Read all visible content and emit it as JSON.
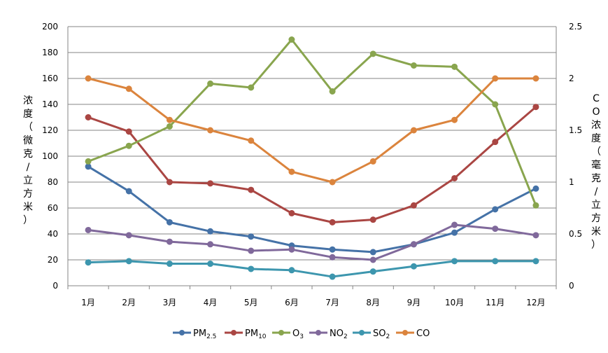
{
  "chart_data": {
    "type": "line",
    "categories": [
      "1月",
      "2月",
      "3月",
      "4月",
      "5月",
      "6月",
      "7月",
      "8月",
      "9月",
      "10月",
      "11月",
      "12月"
    ],
    "ylabel": "浓度（微克/立方米）",
    "y2label": "CO浓度（毫克/立方米）",
    "ylim": [
      0,
      200
    ],
    "yticks": [
      0,
      20,
      40,
      60,
      80,
      100,
      120,
      140,
      160,
      180,
      200
    ],
    "y2lim": [
      0,
      2.5
    ],
    "y2ticks": [
      "0",
      "0.5",
      "1",
      "1.5",
      "2",
      "2.5"
    ],
    "grid": true,
    "legend_position": "bottom",
    "series": [
      {
        "name": "PM2.5",
        "legend_main": "PM",
        "legend_sub": "2.5",
        "axis": "left",
        "color": "#4572A7",
        "values": [
          92,
          73,
          49,
          42,
          38,
          31,
          28,
          26,
          32,
          41,
          59,
          75
        ]
      },
      {
        "name": "PM10",
        "legend_main": "PM",
        "legend_sub": "10",
        "axis": "left",
        "color": "#AA4643",
        "values": [
          130,
          119,
          80,
          79,
          74,
          56,
          49,
          51,
          62,
          83,
          111,
          138
        ]
      },
      {
        "name": "O3",
        "legend_main": "O",
        "legend_sub": "3",
        "axis": "left",
        "color": "#89A54E",
        "values": [
          96,
          108,
          123,
          156,
          153,
          190,
          150,
          179,
          170,
          169,
          140,
          62
        ]
      },
      {
        "name": "NO2",
        "legend_main": "NO",
        "legend_sub": "2",
        "axis": "left",
        "color": "#80699B",
        "values": [
          43,
          39,
          34,
          32,
          27,
          28,
          22,
          20,
          32,
          47,
          44,
          39
        ]
      },
      {
        "name": "SO2",
        "legend_main": "SO",
        "legend_sub": "2",
        "axis": "left",
        "color": "#3D96AE",
        "values": [
          18,
          19,
          17,
          17,
          13,
          12,
          7,
          11,
          15,
          19,
          19,
          19
        ]
      },
      {
        "name": "CO",
        "legend_main": "CO",
        "legend_sub": "",
        "axis": "right",
        "color": "#DB843D",
        "values": [
          2.0,
          1.9,
          1.6,
          1.5,
          1.4,
          1.1,
          1.0,
          1.2,
          1.5,
          1.6,
          2.0,
          2.0
        ]
      }
    ]
  }
}
